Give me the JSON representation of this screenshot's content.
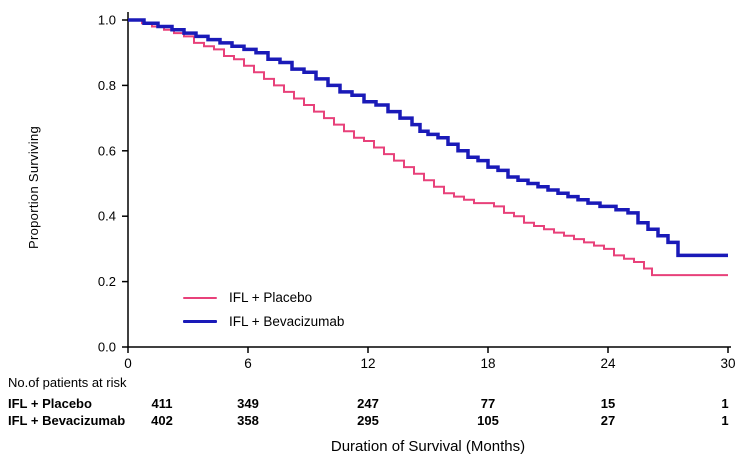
{
  "chart_data": {
    "type": "line",
    "subtype": "kaplan-meier-step",
    "title": "",
    "xlabel": "Duration of Survival (Months)",
    "ylabel": "Proportion Surviving",
    "xlim": [
      0,
      30
    ],
    "ylim": [
      0.0,
      1.0
    ],
    "xticks": [
      0,
      6,
      12,
      18,
      24,
      30
    ],
    "yticks": [
      0.0,
      0.2,
      0.4,
      0.6,
      0.8,
      1.0
    ],
    "grid": false,
    "legend_position": "lower-left",
    "axis_color": "#000000",
    "series": [
      {
        "name": "IFL + Placebo",
        "color": "#e8417a",
        "width": 2,
        "points": [
          [
            0,
            1.0
          ],
          [
            0.7,
            0.99
          ],
          [
            1.2,
            0.98
          ],
          [
            1.8,
            0.97
          ],
          [
            2.3,
            0.96
          ],
          [
            2.8,
            0.95
          ],
          [
            3.3,
            0.93
          ],
          [
            3.8,
            0.92
          ],
          [
            4.3,
            0.91
          ],
          [
            4.8,
            0.89
          ],
          [
            5.3,
            0.88
          ],
          [
            5.8,
            0.86
          ],
          [
            6.3,
            0.84
          ],
          [
            6.8,
            0.82
          ],
          [
            7.3,
            0.8
          ],
          [
            7.8,
            0.78
          ],
          [
            8.3,
            0.76
          ],
          [
            8.8,
            0.74
          ],
          [
            9.3,
            0.72
          ],
          [
            9.8,
            0.7
          ],
          [
            10.3,
            0.68
          ],
          [
            10.8,
            0.66
          ],
          [
            11.3,
            0.64
          ],
          [
            11.8,
            0.63
          ],
          [
            12.3,
            0.61
          ],
          [
            12.8,
            0.59
          ],
          [
            13.3,
            0.57
          ],
          [
            13.8,
            0.55
          ],
          [
            14.3,
            0.53
          ],
          [
            14.8,
            0.51
          ],
          [
            15.3,
            0.49
          ],
          [
            15.8,
            0.47
          ],
          [
            16.3,
            0.46
          ],
          [
            16.8,
            0.45
          ],
          [
            17.3,
            0.44
          ],
          [
            18.3,
            0.43
          ],
          [
            18.8,
            0.41
          ],
          [
            19.3,
            0.4
          ],
          [
            19.8,
            0.38
          ],
          [
            20.3,
            0.37
          ],
          [
            20.8,
            0.36
          ],
          [
            21.3,
            0.35
          ],
          [
            21.8,
            0.34
          ],
          [
            22.3,
            0.33
          ],
          [
            22.8,
            0.32
          ],
          [
            23.3,
            0.31
          ],
          [
            23.8,
            0.3
          ],
          [
            24.3,
            0.28
          ],
          [
            24.8,
            0.27
          ],
          [
            25.3,
            0.26
          ],
          [
            25.8,
            0.24
          ],
          [
            26.2,
            0.22
          ],
          [
            30,
            0.22
          ]
        ]
      },
      {
        "name": "IFL + Bevacizumab",
        "color": "#1a1ab8",
        "width": 3.5,
        "points": [
          [
            0,
            1.0
          ],
          [
            0.8,
            0.99
          ],
          [
            1.5,
            0.98
          ],
          [
            2.2,
            0.97
          ],
          [
            2.8,
            0.96
          ],
          [
            3.4,
            0.95
          ],
          [
            4.0,
            0.94
          ],
          [
            4.6,
            0.93
          ],
          [
            5.2,
            0.92
          ],
          [
            5.8,
            0.91
          ],
          [
            6.4,
            0.9
          ],
          [
            7.0,
            0.88
          ],
          [
            7.6,
            0.87
          ],
          [
            8.2,
            0.85
          ],
          [
            8.8,
            0.84
          ],
          [
            9.4,
            0.82
          ],
          [
            10.0,
            0.8
          ],
          [
            10.6,
            0.78
          ],
          [
            11.2,
            0.77
          ],
          [
            11.8,
            0.75
          ],
          [
            12.4,
            0.74
          ],
          [
            13.0,
            0.72
          ],
          [
            13.6,
            0.7
          ],
          [
            14.2,
            0.68
          ],
          [
            14.6,
            0.66
          ],
          [
            15.0,
            0.65
          ],
          [
            15.5,
            0.64
          ],
          [
            16.0,
            0.62
          ],
          [
            16.5,
            0.6
          ],
          [
            17.0,
            0.58
          ],
          [
            17.5,
            0.57
          ],
          [
            18.0,
            0.55
          ],
          [
            18.5,
            0.54
          ],
          [
            19.0,
            0.52
          ],
          [
            19.5,
            0.51
          ],
          [
            20.0,
            0.5
          ],
          [
            20.5,
            0.49
          ],
          [
            21.0,
            0.48
          ],
          [
            21.5,
            0.47
          ],
          [
            22.0,
            0.46
          ],
          [
            22.5,
            0.45
          ],
          [
            23.0,
            0.44
          ],
          [
            23.6,
            0.43
          ],
          [
            24.4,
            0.42
          ],
          [
            25.0,
            0.41
          ],
          [
            25.5,
            0.38
          ],
          [
            26.0,
            0.36
          ],
          [
            26.5,
            0.34
          ],
          [
            27.0,
            0.32
          ],
          [
            27.5,
            0.28
          ],
          [
            30,
            0.28
          ]
        ]
      }
    ]
  },
  "at_risk_table": {
    "title": "No.of patients at risk",
    "rows": [
      {
        "label": "IFL + Placebo",
        "values": [
          411,
          349,
          247,
          77,
          15,
          1
        ]
      },
      {
        "label": "IFL + Bevacizumab",
        "values": [
          402,
          358,
          295,
          105,
          27,
          1
        ]
      }
    ]
  }
}
